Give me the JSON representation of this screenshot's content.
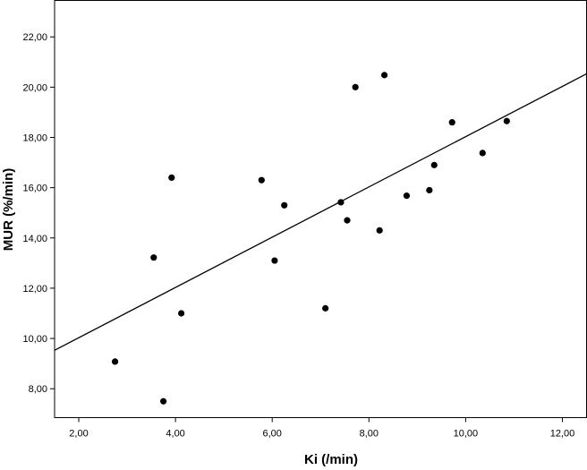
{
  "chart_data": {
    "type": "scatter",
    "title": "",
    "xlabel": "Ki (/min)",
    "ylabel": "MUR (%/min)",
    "xlim": [
      1.5,
      12.5
    ],
    "ylim": [
      6.85,
      23.45
    ],
    "x_ticks": [
      2,
      4,
      6,
      8,
      10,
      12
    ],
    "y_ticks": [
      8,
      10,
      12,
      14,
      16,
      18,
      20,
      22
    ],
    "x_tick_labels": [
      "2,00",
      "4,00",
      "6,00",
      "8,00",
      "10,00",
      "12,00"
    ],
    "y_tick_labels": [
      "8,00",
      "10,00",
      "12,00",
      "14,00",
      "16,00",
      "18,00",
      "20,00",
      "22,00"
    ],
    "grid": false,
    "points": [
      {
        "x": 2.75,
        "y": 9.08
      },
      {
        "x": 3.55,
        "y": 13.22
      },
      {
        "x": 3.75,
        "y": 7.5
      },
      {
        "x": 3.92,
        "y": 16.4
      },
      {
        "x": 4.12,
        "y": 11.0
      },
      {
        "x": 5.78,
        "y": 16.3
      },
      {
        "x": 6.05,
        "y": 13.1
      },
      {
        "x": 6.25,
        "y": 15.3
      },
      {
        "x": 7.1,
        "y": 11.2
      },
      {
        "x": 7.42,
        "y": 15.42
      },
      {
        "x": 7.55,
        "y": 14.7
      },
      {
        "x": 7.72,
        "y": 20.0
      },
      {
        "x": 8.22,
        "y": 14.3
      },
      {
        "x": 8.32,
        "y": 20.48
      },
      {
        "x": 8.78,
        "y": 15.68
      },
      {
        "x": 9.25,
        "y": 15.9
      },
      {
        "x": 9.35,
        "y": 16.9
      },
      {
        "x": 9.72,
        "y": 18.6
      },
      {
        "x": 10.35,
        "y": 17.38
      },
      {
        "x": 10.85,
        "y": 18.65
      }
    ],
    "fit_line": {
      "x": [
        1.5,
        12.5
      ],
      "y": [
        9.53,
        20.53
      ]
    }
  }
}
